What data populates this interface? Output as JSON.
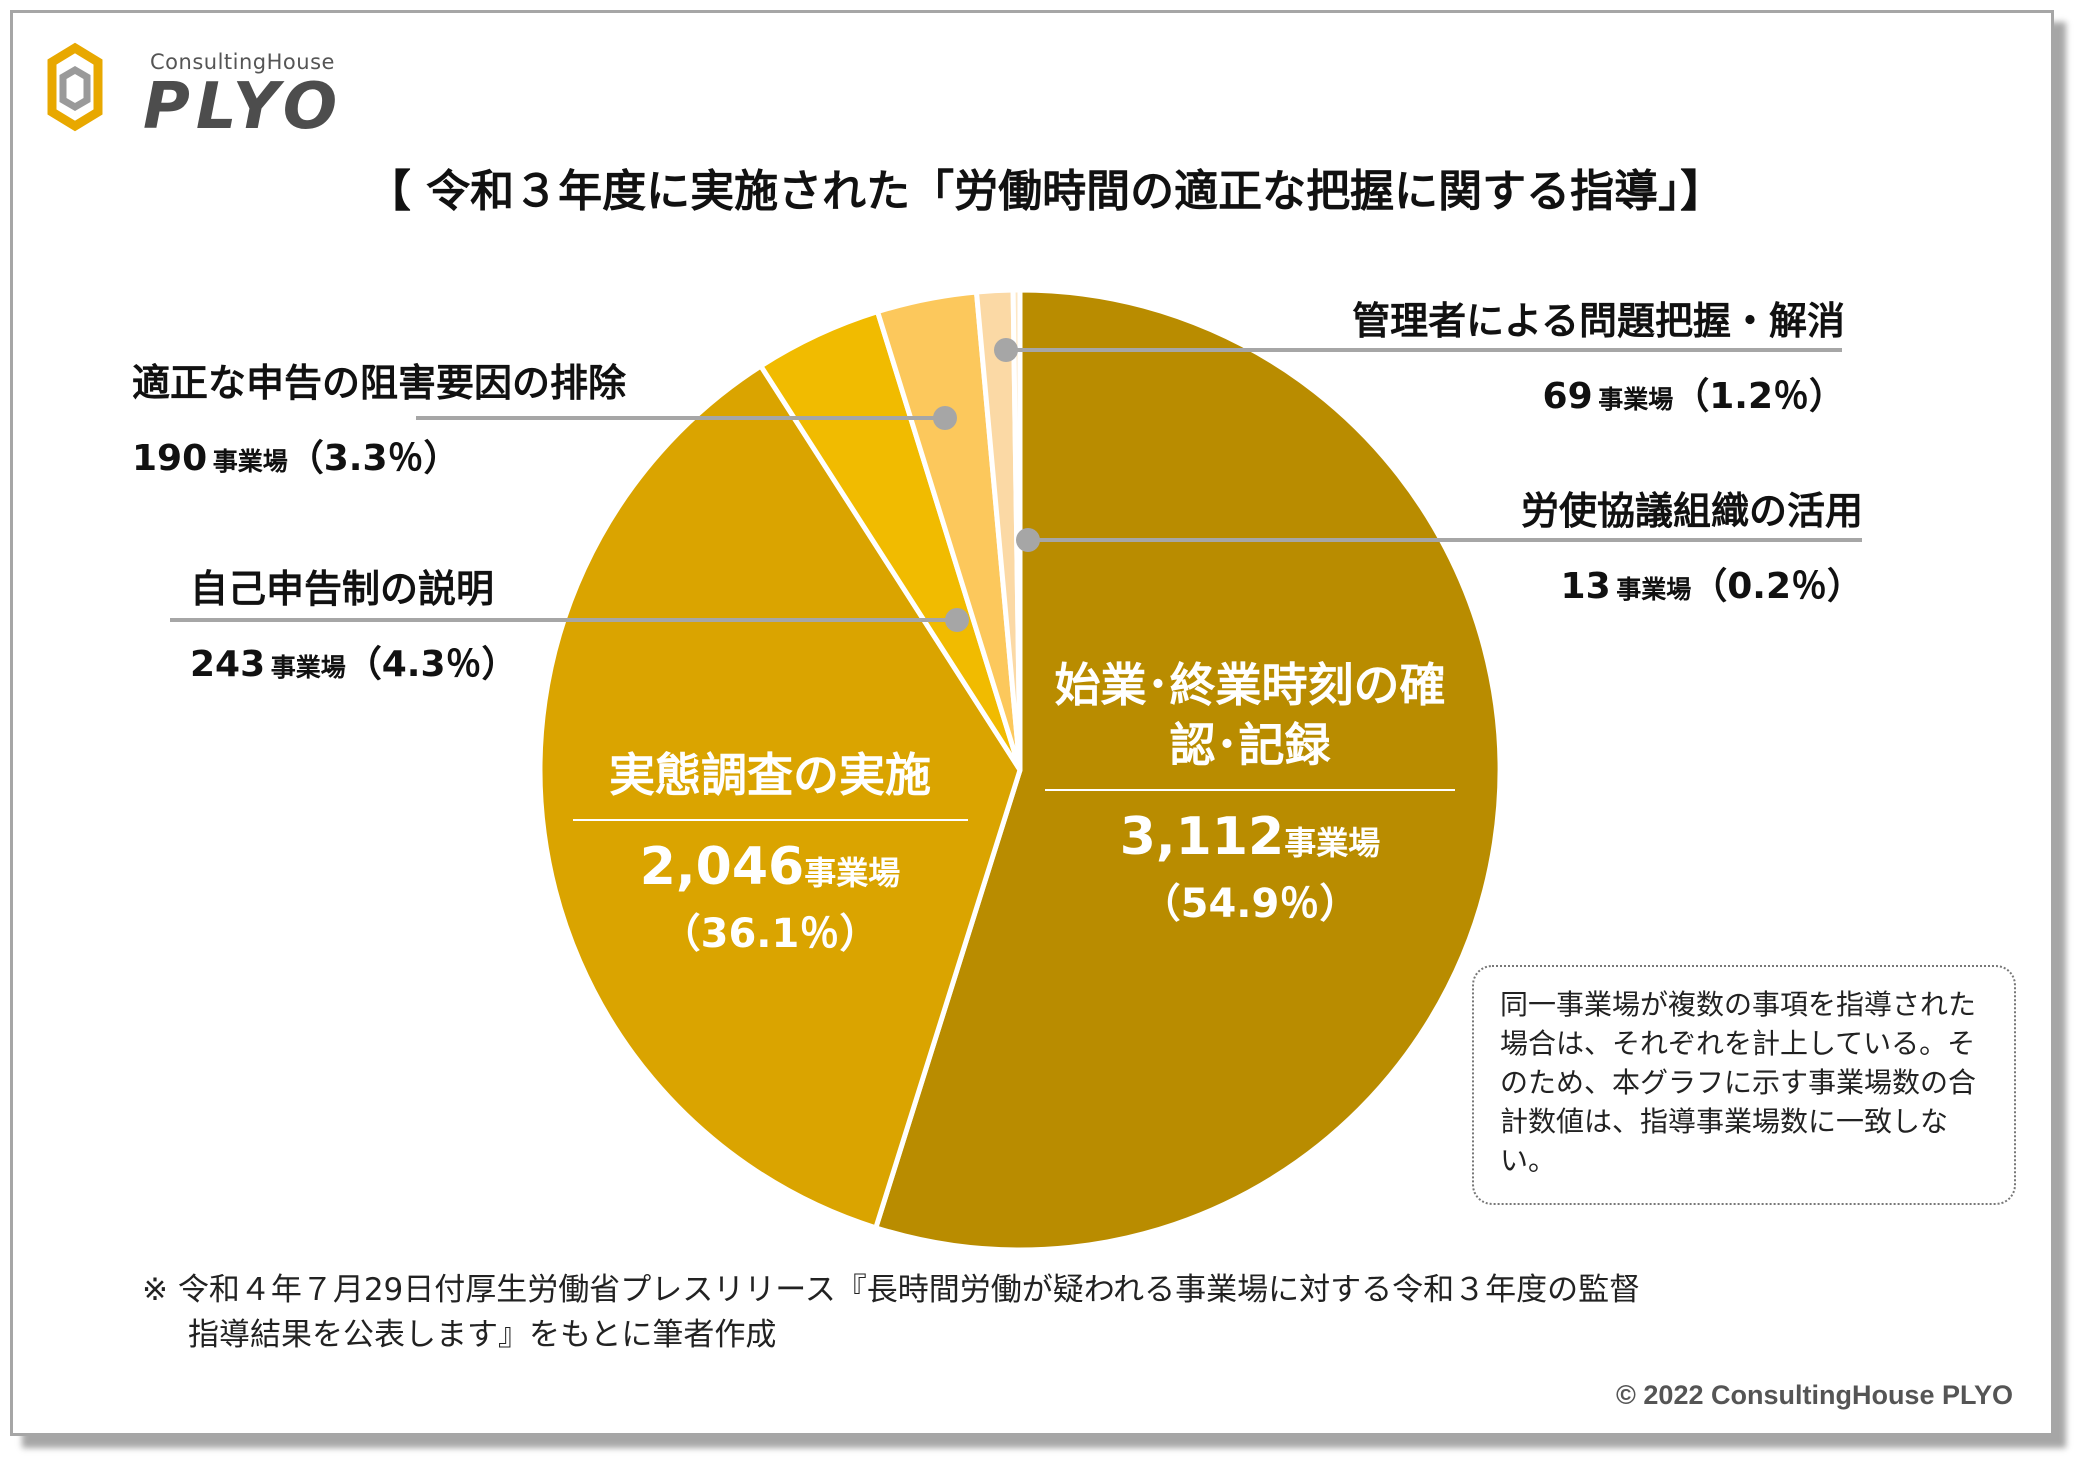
{
  "logo": {
    "sub": "ConsultingHouse",
    "main": "PLYO"
  },
  "chart_data": {
    "type": "pie",
    "title": "【 令和３年度に実施された「労働時間の適正な把握に関する指導」】",
    "unit": "事業場",
    "slices": [
      {
        "label": "始業･終業時刻の確認･記録",
        "value": 3112,
        "value_text": "3,112",
        "percent": 54.9,
        "percent_text": "（54.9％）",
        "color": "#b98c00"
      },
      {
        "label": "実態調査の実施",
        "value": 2046,
        "value_text": "2,046",
        "percent": 36.1,
        "percent_text": "（36.1％）",
        "color": "#daa400"
      },
      {
        "label": "自己申告制の説明",
        "value": 243,
        "value_text": "243",
        "percent": 4.3,
        "percent_text": "（4.3％）",
        "color": "#f1bb00"
      },
      {
        "label": "適正な申告の阻害要因の排除",
        "value": 190,
        "value_text": "190",
        "percent": 3.3,
        "percent_text": "（3.3％）",
        "color": "#fcc85c"
      },
      {
        "label": "管理者による問題把握・解消",
        "value": 69,
        "value_text": "69",
        "percent": 1.2,
        "percent_text": "（1.2％）",
        "color": "#fbd9a5"
      },
      {
        "label": "労使協議組織の活用",
        "value": 13,
        "value_text": "13",
        "percent": 0.2,
        "percent_text": "（0.2％）",
        "color": "#fde7c4"
      }
    ]
  },
  "note": "同一事業場が複数の事項を指導された場合は、それぞれを計上している。そのため、本グラフに示す事業場数の合計数値は、指導事業場数に一致しない。",
  "footnote": {
    "line1": "※ 令和４年７月29日付厚生労働省プレスリリース『長時間労働が疑われる事業場に対する令和３年度の監督",
    "line2": "指導結果を公表します』をもとに筆者作成"
  },
  "copyright": "© 2022 ConsultingHouse PLYO",
  "colors": {
    "leader": "#a6a6a6",
    "dot": "#a6a6a6",
    "border": "#a6a6a6"
  }
}
